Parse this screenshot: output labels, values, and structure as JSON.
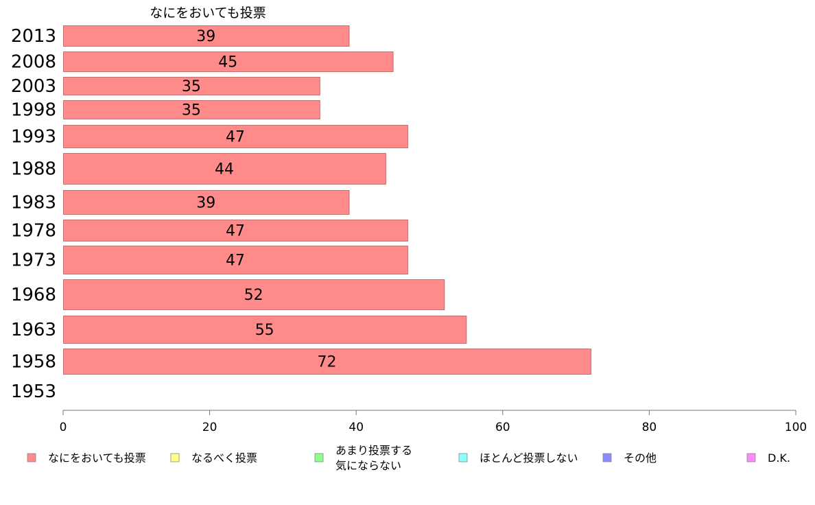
{
  "chart_data": {
    "type": "bar",
    "orientation": "horizontal",
    "title": "なにをおいても投票",
    "categories": [
      "2013",
      "2008",
      "2003",
      "1998",
      "1993",
      "1988",
      "1983",
      "1978",
      "1973",
      "1968",
      "1963",
      "1958",
      "1953"
    ],
    "series": [
      {
        "name": "なにをおいても投票",
        "color": "#ff8a8a",
        "values": [
          39,
          45,
          35,
          35,
          47,
          44,
          39,
          47,
          47,
          52,
          55,
          72,
          null
        ],
        "labels": [
          "39",
          "45",
          "35",
          "35",
          "47",
          "44",
          "39",
          "47",
          "47",
          "52",
          "55",
          "72",
          ""
        ]
      }
    ],
    "xlim": [
      0,
      100
    ],
    "xticks": [
      "0",
      "20",
      "40",
      "60",
      "80",
      "100"
    ],
    "grid": false,
    "legend": {
      "placement": "bottom",
      "items": [
        {
          "label": [
            "なにをおいても投票"
          ],
          "color": "#ff8a8a"
        },
        {
          "label": [
            "なるべく投票"
          ],
          "color": "#ffff8a"
        },
        {
          "label": [
            "あまり投票する",
            "気にならない"
          ],
          "color": "#8aff8a"
        },
        {
          "label": [
            "ほとんど投票しない"
          ],
          "color": "#8affff"
        },
        {
          "label": [
            "その他"
          ],
          "color": "#8a8aff"
        },
        {
          "label": [
            "D.K."
          ],
          "color": "#ff8aff"
        }
      ]
    }
  }
}
